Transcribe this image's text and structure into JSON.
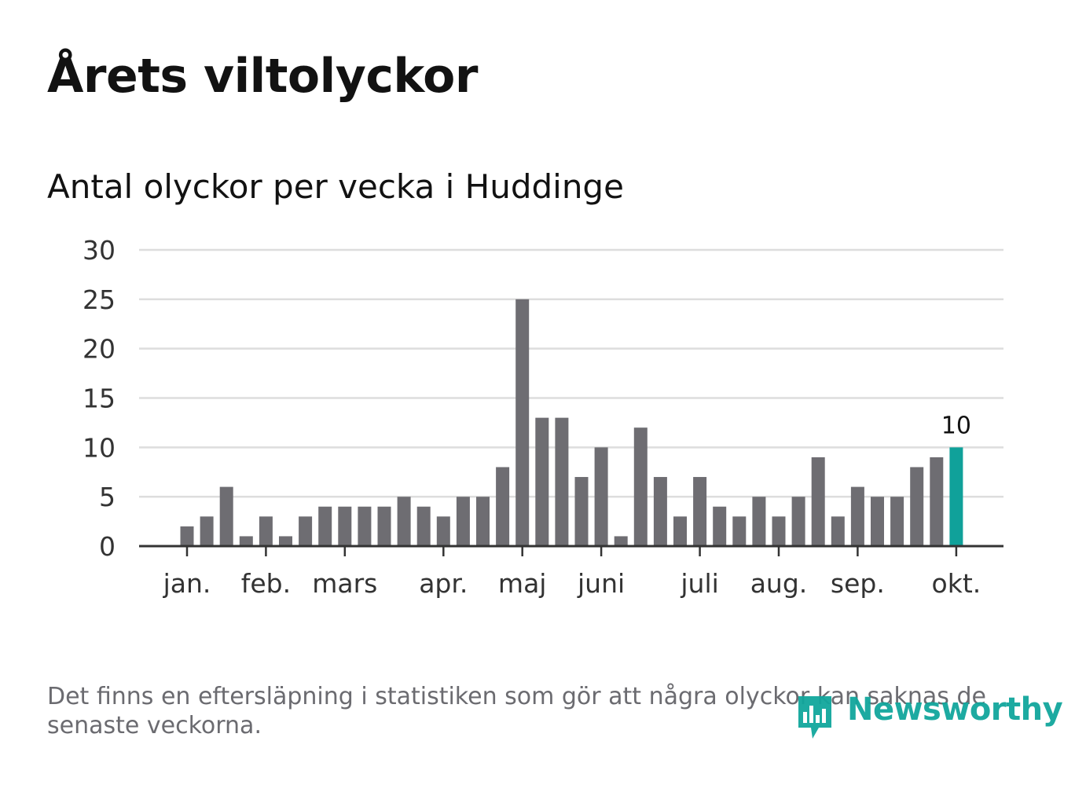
{
  "header": {
    "title": "Årets viltolyckor",
    "subtitle": "Antal olyckor per vecka i Huddinge"
  },
  "footer": {
    "note": "Det finns en eftersläpning i statistiken som gör att några olyckor kan saknas de senaste veckorna.",
    "brand": "Newsworthy"
  },
  "colors": {
    "bar": "#6e6d72",
    "highlight": "#10a19a",
    "grid": "#dddddd",
    "axis": "#333333",
    "text": "#121212",
    "muted": "#6b6b70"
  },
  "chart_data": {
    "type": "bar",
    "title": "Antal olyckor per vecka i Huddinge",
    "xlabel": "",
    "ylabel": "",
    "ylim": [
      0,
      30
    ],
    "yticks": [
      "0",
      "5",
      "10",
      "15",
      "20",
      "25",
      "30"
    ],
    "grid": true,
    "x_week_ticks": [
      {
        "label": "jan.",
        "week": 1
      },
      {
        "label": "feb.",
        "week": 5
      },
      {
        "label": "mars",
        "week": 9
      },
      {
        "label": "apr.",
        "week": 14
      },
      {
        "label": "maj",
        "week": 18
      },
      {
        "label": "juni",
        "week": 22
      },
      {
        "label": "juli",
        "week": 27
      },
      {
        "label": "aug.",
        "week": 31
      },
      {
        "label": "sep.",
        "week": 35
      },
      {
        "label": "okt.",
        "week": 40
      }
    ],
    "series": [
      {
        "name": "Antal olyckor",
        "weeks": [
          1,
          2,
          3,
          4,
          5,
          6,
          7,
          8,
          9,
          10,
          11,
          12,
          13,
          14,
          15,
          16,
          17,
          18,
          19,
          20,
          21,
          22,
          23,
          24,
          25,
          26,
          27,
          28,
          29,
          30,
          31,
          32,
          33,
          34,
          35,
          36,
          37,
          38,
          39,
          40
        ],
        "values": [
          2,
          3,
          6,
          1,
          3,
          1,
          3,
          4,
          4,
          4,
          4,
          5,
          4,
          3,
          5,
          5,
          8,
          25,
          13,
          13,
          7,
          10,
          1,
          12,
          7,
          3,
          7,
          4,
          3,
          5,
          3,
          5,
          9,
          3,
          6,
          5,
          5,
          8,
          9,
          10
        ]
      }
    ],
    "highlight": {
      "week": 40,
      "value": 10,
      "label": "10"
    }
  }
}
